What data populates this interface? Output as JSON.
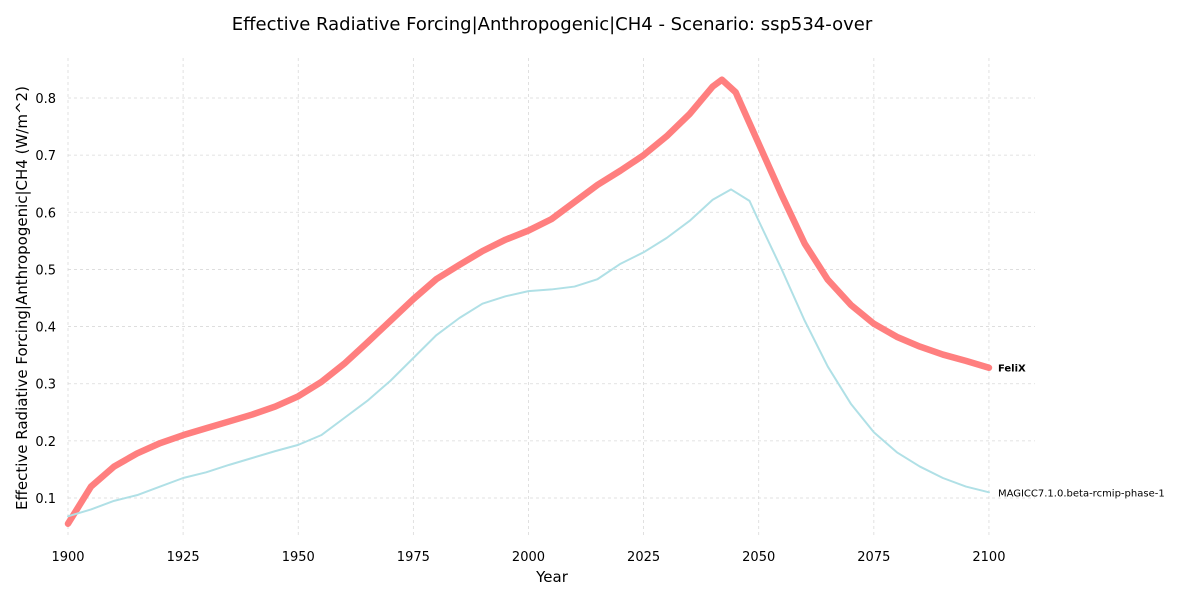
{
  "chart_data": {
    "type": "line",
    "title": "Effective Radiative Forcing|Anthropogenic|CH4 - Scenario: ssp534-over",
    "xlabel": "Year",
    "ylabel": "Effective Radiative Forcing|Anthropogenic|CH4 (W/m^2)",
    "xlim": [
      1900,
      2110
    ],
    "ylim": [
      0.03,
      0.87
    ],
    "xticks": [
      1900,
      1925,
      1950,
      1975,
      2000,
      2025,
      2050,
      2075,
      2100
    ],
    "yticks": [
      0.1,
      0.2,
      0.3,
      0.4,
      0.5,
      0.6,
      0.7,
      0.8
    ],
    "grid": true,
    "series": [
      {
        "name": "FeliX",
        "color": "#ff7f7f",
        "x": [
          1900,
          1905,
          1910,
          1915,
          1920,
          1925,
          1930,
          1935,
          1940,
          1945,
          1950,
          1955,
          1960,
          1965,
          1970,
          1975,
          1980,
          1985,
          1990,
          1995,
          2000,
          2005,
          2010,
          2015,
          2020,
          2025,
          2030,
          2035,
          2040,
          2042,
          2045,
          2050,
          2055,
          2060,
          2065,
          2070,
          2075,
          2080,
          2085,
          2090,
          2095,
          2100
        ],
        "y": [
          0.055,
          0.12,
          0.155,
          0.178,
          0.196,
          0.21,
          0.222,
          0.234,
          0.246,
          0.26,
          0.278,
          0.303,
          0.335,
          0.372,
          0.41,
          0.448,
          0.483,
          0.508,
          0.532,
          0.552,
          0.568,
          0.588,
          0.618,
          0.648,
          0.673,
          0.7,
          0.733,
          0.772,
          0.82,
          0.832,
          0.81,
          0.72,
          0.63,
          0.545,
          0.482,
          0.438,
          0.405,
          0.382,
          0.365,
          0.351,
          0.34,
          0.328
        ]
      },
      {
        "name": "MAGICC7.1.0.beta-rcmip-phase-1",
        "color": "#b0e0e6",
        "x": [
          1900,
          1905,
          1910,
          1915,
          1920,
          1925,
          1930,
          1935,
          1940,
          1945,
          1950,
          1955,
          1960,
          1965,
          1970,
          1975,
          1980,
          1985,
          1990,
          1995,
          2000,
          2005,
          2010,
          2015,
          2020,
          2025,
          2030,
          2035,
          2040,
          2044,
          2048,
          2050,
          2055,
          2060,
          2065,
          2070,
          2075,
          2080,
          2085,
          2090,
          2095,
          2100
        ],
        "y": [
          0.068,
          0.08,
          0.095,
          0.105,
          0.12,
          0.135,
          0.145,
          0.158,
          0.17,
          0.182,
          0.193,
          0.21,
          0.24,
          0.27,
          0.305,
          0.345,
          0.385,
          0.415,
          0.44,
          0.453,
          0.462,
          0.465,
          0.47,
          0.483,
          0.51,
          0.53,
          0.555,
          0.585,
          0.622,
          0.64,
          0.62,
          0.585,
          0.5,
          0.41,
          0.33,
          0.265,
          0.215,
          0.18,
          0.155,
          0.135,
          0.12,
          0.11
        ]
      }
    ]
  }
}
